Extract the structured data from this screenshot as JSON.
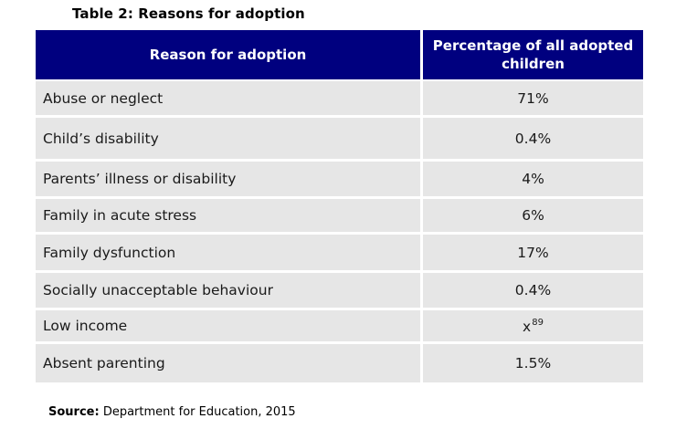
{
  "title": "Table 2: Reasons for adoption",
  "table": {
    "headers": [
      "Reason for adoption",
      "Percentage of all adopted children"
    ],
    "rows": [
      {
        "reason": "Abuse or neglect",
        "value": "71%",
        "footnote": ""
      },
      {
        "reason": "Child’s disability",
        "value": "0.4%",
        "footnote": ""
      },
      {
        "reason": "Parents’ illness or disability",
        "value": "4%",
        "footnote": ""
      },
      {
        "reason": "Family in acute stress",
        "value": "6%",
        "footnote": ""
      },
      {
        "reason": "Family dysfunction",
        "value": "17%",
        "footnote": ""
      },
      {
        "reason": "Socially unacceptable behaviour",
        "value": "0.4%",
        "footnote": ""
      },
      {
        "reason": "Low income",
        "value": "x",
        "footnote": "89"
      },
      {
        "reason": "Absent parenting",
        "value": "1.5%",
        "footnote": ""
      }
    ]
  },
  "source": {
    "label": "Source:",
    "text": "Department for Education, 2015"
  },
  "colors": {
    "header_bg": "#00007f",
    "header_text": "#ffffff",
    "row_bg": "#e6e6e6"
  }
}
